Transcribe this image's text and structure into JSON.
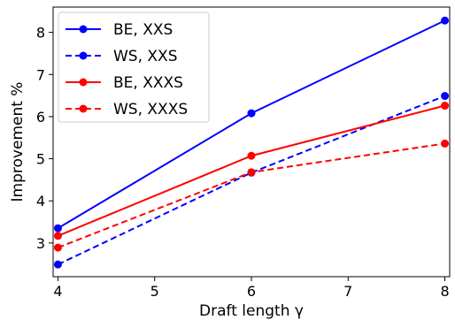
{
  "chart_data": {
    "type": "line",
    "title": "",
    "xlabel": "Draft length γ",
    "ylabel": "Improvement %",
    "xlim": [
      3.95,
      8.05
    ],
    "ylim": [
      2.2,
      8.6
    ],
    "xticks": [
      "4",
      "5",
      "6",
      "7",
      "8"
    ],
    "yticks": [
      "3",
      "4",
      "5",
      "6",
      "7",
      "8"
    ],
    "grid": false,
    "legend_position": "top-left",
    "series": [
      {
        "name": "BE, XXS",
        "color": "#0000ff",
        "dash": false,
        "x": [
          4,
          6,
          8
        ],
        "y": [
          3.35,
          6.08,
          8.28
        ]
      },
      {
        "name": "WS, XXS",
        "color": "#0000ff",
        "dash": true,
        "x": [
          4,
          6,
          8
        ],
        "y": [
          2.49,
          4.67,
          6.49
        ]
      },
      {
        "name": "BE, XXXS",
        "color": "#ff0000",
        "dash": false,
        "x": [
          4,
          6,
          8
        ],
        "y": [
          3.17,
          5.07,
          6.26
        ]
      },
      {
        "name": "WS, XXXS",
        "color": "#ff0000",
        "dash": true,
        "x": [
          4,
          6,
          8
        ],
        "y": [
          2.89,
          4.68,
          5.36
        ]
      }
    ]
  }
}
